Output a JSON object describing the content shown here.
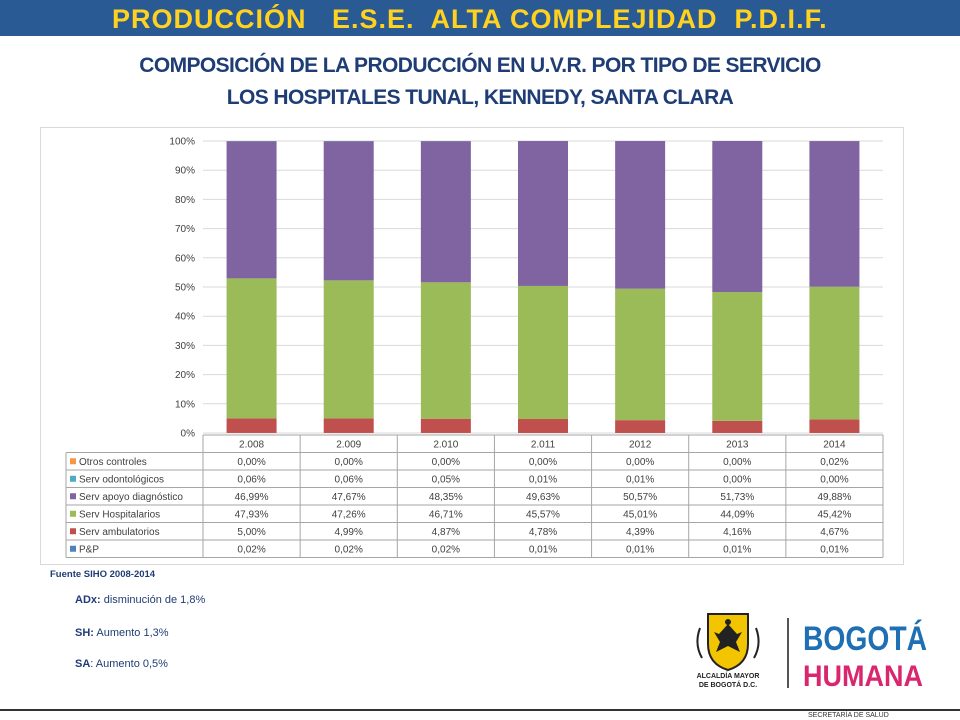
{
  "header": {
    "title": "PRODUCCIÓN   E.S.E.  ALTA COMPLEJIDAD  P.D.I.F.",
    "line1": "COMPOSICIÓN DE LA PRODUCCIÓN EN U.V.R. POR TIPO DE SERVICIO",
    "line2": "LOS HOSPITALES TUNAL, KENNEDY, SANTA CLARA"
  },
  "chart_data": {
    "type": "bar",
    "stacked": "percent",
    "categories": [
      "2.008",
      "2.009",
      "2.010",
      "2.011",
      "2012",
      "2013",
      "2014"
    ],
    "y_ticks": [
      "0%",
      "10%",
      "20%",
      "30%",
      "40%",
      "50%",
      "60%",
      "70%",
      "80%",
      "90%",
      "100%"
    ],
    "ylim": [
      0,
      100
    ],
    "series": [
      {
        "name": "P&P",
        "color": "#4f81bd",
        "values": [
          0.02,
          0.02,
          0.02,
          0.01,
          0.01,
          0.01,
          0.01
        ],
        "labels": [
          "0,02%",
          "0,02%",
          "0,02%",
          "0,01%",
          "0,01%",
          "0,01%",
          "0,01%"
        ]
      },
      {
        "name": "Serv ambulatorios",
        "color": "#c0504d",
        "values": [
          5.0,
          4.99,
          4.87,
          4.78,
          4.39,
          4.16,
          4.67
        ],
        "labels": [
          "5,00%",
          "4,99%",
          "4,87%",
          "4,78%",
          "4,39%",
          "4,16%",
          "4,67%"
        ]
      },
      {
        "name": "Serv Hospitalarios",
        "color": "#9bbb59",
        "values": [
          47.93,
          47.26,
          46.71,
          45.57,
          45.01,
          44.09,
          45.42
        ],
        "labels": [
          "47,93%",
          "47,26%",
          "46,71%",
          "45,57%",
          "45,01%",
          "44,09%",
          "45,42%"
        ]
      },
      {
        "name": "Serv apoyo diagnóstico",
        "color": "#8064a2",
        "values": [
          46.99,
          47.67,
          48.35,
          49.63,
          50.57,
          51.73,
          49.88
        ],
        "labels": [
          "46,99%",
          "47,67%",
          "48,35%",
          "49,63%",
          "50,57%",
          "51,73%",
          "49,88%"
        ]
      },
      {
        "name": "Serv odontológicos",
        "color": "#4bacc6",
        "values": [
          0.06,
          0.06,
          0.05,
          0.01,
          0.01,
          0.0,
          0.0
        ],
        "labels": [
          "0,06%",
          "0,06%",
          "0,05%",
          "0,01%",
          "0,01%",
          "0,00%",
          "0,00%"
        ]
      },
      {
        "name": "Otros controles",
        "color": "#f79646",
        "values": [
          0.0,
          0.0,
          0.0,
          0.0,
          0.0,
          0.0,
          0.02
        ],
        "labels": [
          "0,00%",
          "0,00%",
          "0,00%",
          "0,00%",
          "0,00%",
          "0,00%",
          "0,02%"
        ]
      }
    ],
    "table_row_order": [
      "Otros controles",
      "Serv odontológicos",
      "Serv apoyo diagnóstico",
      "Serv Hospitalarios",
      "Serv ambulatorios",
      "P&P"
    ],
    "grid": true,
    "legend": "data-table"
  },
  "source": "Fuente SIHO 2008-2014",
  "notes": [
    {
      "label": "ADx:",
      "text": " disminución de 1,8%"
    },
    {
      "label": "SH:",
      "text": "  Aumento 1,3%"
    },
    {
      "label": "SA",
      "text": ":  Aumento 0,5%"
    }
  ],
  "logos": {
    "alcaldia_line1": "ALCALDÍA MAYOR",
    "alcaldia_line2": "DE BOGOTÁ D.C.",
    "bogota_word": "BOGOTÁ",
    "humana_word": "HUMANA",
    "colors": {
      "bogota_blue": "#1f6fb5",
      "humana_pink": "#d9276f",
      "yellow": "#f3c400",
      "green": "#49a942",
      "red": "#d92e2e"
    }
  },
  "footer": "SECRETARÍA DE SALUD"
}
